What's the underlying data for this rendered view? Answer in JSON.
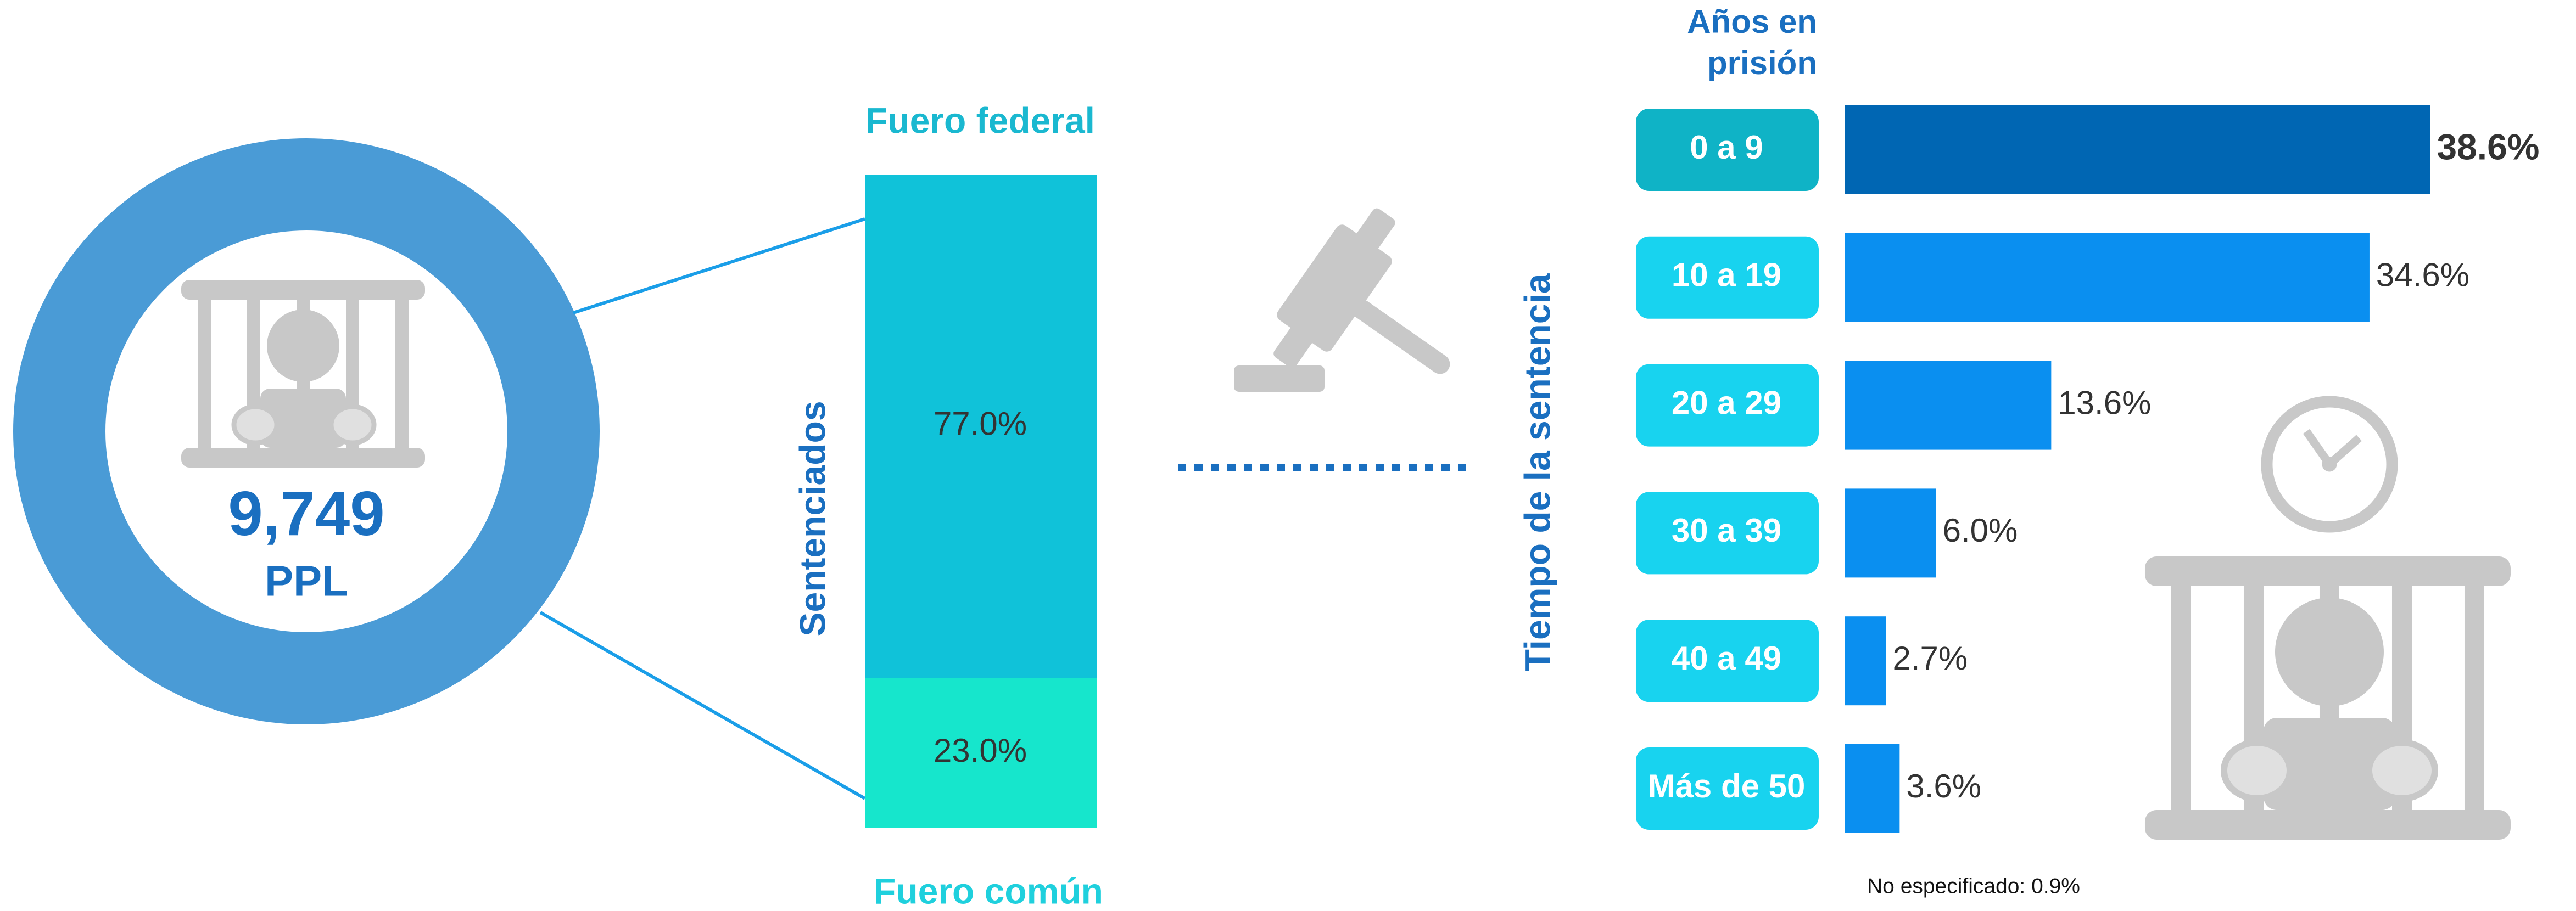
{
  "total": {
    "value": 9749,
    "label": "9,749",
    "unit": "PPL"
  },
  "split": {
    "title": "Sentenciados",
    "categories": [
      "Fuero federal",
      "Fuero común"
    ],
    "values": [
      77.0,
      23.0
    ],
    "value_labels": [
      "77.0%",
      "23.0%"
    ],
    "colors": [
      "#10c2d9",
      "#16e6cc"
    ]
  },
  "chart_data": {
    "type": "bar",
    "orientation": "horizontal",
    "title": "Tiempo de la sentencia",
    "category_title": "Años en prisión",
    "categories": [
      "0 a 9",
      "10 a 19",
      "20 a 29",
      "30 a 39",
      "40 a 49",
      "Más de 50"
    ],
    "values": [
      38.6,
      34.6,
      13.6,
      6.0,
      2.7,
      3.6
    ],
    "value_labels": [
      "38.6%",
      "34.6%",
      "13.6%",
      "6.0%",
      "2.7%",
      "3.6%"
    ],
    "color": "#0a8ff0",
    "highlight_color": "#0066b3",
    "xlim": [
      0,
      40
    ]
  },
  "note": "No especificado: 0.9%"
}
